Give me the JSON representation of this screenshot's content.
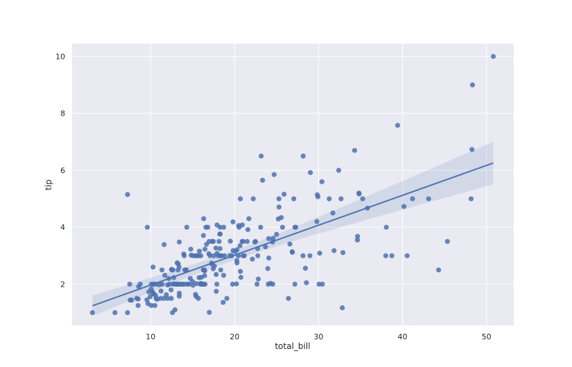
{
  "chart_data": {
    "type": "scatter",
    "subtype": "regplot",
    "title": "",
    "xlabel": "total_bill",
    "ylabel": "tip",
    "xlim": [
      0.65,
      53.25
    ],
    "ylim": [
      0.55,
      10.45
    ],
    "xticks": [
      10,
      20,
      30,
      40,
      50
    ],
    "yticks": [
      2,
      4,
      6,
      8,
      10
    ],
    "grid": true,
    "legend": null,
    "colors": {
      "background": "#eaeaf2",
      "grid": "#ffffff",
      "points": "#4c72b0",
      "line": "#4c72b0",
      "band": "#4c72b0"
    },
    "regression": {
      "x_range": [
        3.07,
        50.81
      ],
      "slope": 0.105,
      "intercept": 0.92,
      "ci_start": [
        0.9,
        1.63
      ],
      "ci_end": [
        5.46,
        6.95
      ]
    },
    "x": [
      16.99,
      10.34,
      21.01,
      23.68,
      24.59,
      25.29,
      8.77,
      26.88,
      15.04,
      14.78,
      10.27,
      35.26,
      15.42,
      18.43,
      14.83,
      21.58,
      10.33,
      16.29,
      16.97,
      20.65,
      17.92,
      20.29,
      15.77,
      39.42,
      19.82,
      17.81,
      13.37,
      12.69,
      21.7,
      19.65,
      9.55,
      18.35,
      15.06,
      20.69,
      17.78,
      24.06,
      16.31,
      16.93,
      18.69,
      31.27,
      16.04,
      17.46,
      13.94,
      9.68,
      30.4,
      18.29,
      22.23,
      32.4,
      28.55,
      18.04,
      12.54,
      10.29,
      34.81,
      9.94,
      25.56,
      19.49,
      38.01,
      26.41,
      11.24,
      48.27,
      20.29,
      13.81,
      11.02,
      18.29,
      17.59,
      20.08,
      16.45,
      3.07,
      20.23,
      15.01,
      12.02,
      17.07,
      26.86,
      25.28,
      14.73,
      10.51,
      17.92,
      27.2,
      22.76,
      17.29,
      19.44,
      16.66,
      10.07,
      32.68,
      15.98,
      34.83,
      13.03,
      18.28,
      24.71,
      21.16,
      28.97,
      22.49,
      5.75,
      16.32,
      22.75,
      40.17,
      27.28,
      12.03,
      21.01,
      12.46,
      11.35,
      15.38,
      44.3,
      22.42,
      20.92,
      15.36,
      20.49,
      25.21,
      18.24,
      14.31,
      14.0,
      7.25,
      38.07,
      23.95,
      25.71,
      17.31,
      29.93,
      10.65,
      12.43,
      24.08,
      11.69,
      13.42,
      14.26,
      15.95,
      12.48,
      29.8,
      8.52,
      14.52,
      11.38,
      22.82,
      19.08,
      20.27,
      11.17,
      12.26,
      18.26,
      8.51,
      10.33,
      14.15,
      16.0,
      13.16,
      17.47,
      34.3,
      41.19,
      27.05,
      16.43,
      8.35,
      18.64,
      11.87,
      9.78,
      7.51,
      14.07,
      13.13,
      17.26,
      24.55,
      19.77,
      29.85,
      48.17,
      25.0,
      13.39,
      16.49,
      21.5,
      12.66,
      16.21,
      13.81,
      17.51,
      24.52,
      20.76,
      31.71,
      10.59,
      10.63,
      50.81,
      15.81,
      7.25,
      31.85,
      16.82,
      32.9,
      17.89,
      14.48,
      9.6,
      34.63,
      34.65,
      23.33,
      45.35,
      23.17,
      40.55,
      20.69,
      20.9,
      30.46,
      18.15,
      23.1,
      15.69,
      19.81,
      28.44,
      15.48,
      16.58,
      7.56,
      10.34,
      43.11,
      13.0,
      13.51,
      18.71,
      12.74,
      13.0,
      16.4,
      20.53,
      16.47,
      26.59,
      38.73,
      24.27,
      12.76,
      30.06,
      25.89,
      48.33,
      13.27,
      28.17,
      12.9,
      28.15,
      11.59,
      7.74,
      30.14,
      12.16,
      13.42,
      8.58,
      15.98,
      13.42,
      16.27,
      10.09,
      20.45,
      13.28,
      22.12,
      24.01,
      15.69,
      11.61,
      10.77,
      15.53,
      10.07,
      12.6,
      32.83,
      35.83,
      29.03,
      27.18,
      22.67,
      17.82,
      18.78
    ],
    "y": [
      1.01,
      1.66,
      3.5,
      3.31,
      3.61,
      4.71,
      2.0,
      3.12,
      1.96,
      3.23,
      1.71,
      5.0,
      1.57,
      3.0,
      3.02,
      3.92,
      1.67,
      3.71,
      3.5,
      3.35,
      4.08,
      2.75,
      2.23,
      7.58,
      3.18,
      2.34,
      2.0,
      2.0,
      4.3,
      3.0,
      1.45,
      2.5,
      3.0,
      2.45,
      3.27,
      3.6,
      2.0,
      3.07,
      2.31,
      5.0,
      2.24,
      2.54,
      3.06,
      1.32,
      5.6,
      3.0,
      5.0,
      6.0,
      2.05,
      3.0,
      2.5,
      2.6,
      5.2,
      1.56,
      4.34,
      3.51,
      3.0,
      1.5,
      1.76,
      6.73,
      3.21,
      2.0,
      1.98,
      3.76,
      2.64,
      3.15,
      2.47,
      1.0,
      2.01,
      2.09,
      1.97,
      3.0,
      3.14,
      5.0,
      2.2,
      1.25,
      3.08,
      4.0,
      3.0,
      2.71,
      3.0,
      3.4,
      1.83,
      5.0,
      2.03,
      5.17,
      2.0,
      4.0,
      5.85,
      3.0,
      3.0,
      3.5,
      1.0,
      4.3,
      3.25,
      4.73,
      4.0,
      1.5,
      3.0,
      1.5,
      2.5,
      3.0,
      2.5,
      3.48,
      4.08,
      1.64,
      4.06,
      4.29,
      3.76,
      4.0,
      3.0,
      1.0,
      4.0,
      2.55,
      4.0,
      3.5,
      5.07,
      1.5,
      1.8,
      2.92,
      2.31,
      1.68,
      2.5,
      2.0,
      2.52,
      4.2,
      1.48,
      2.0,
      2.0,
      2.18,
      1.5,
      2.83,
      1.5,
      2.0,
      3.25,
      1.25,
      2.0,
      2.0,
      2.0,
      2.75,
      3.5,
      6.7,
      5.0,
      5.0,
      2.3,
      1.5,
      1.36,
      1.63,
      1.73,
      2.0,
      2.5,
      2.0,
      2.74,
      2.0,
      2.0,
      5.14,
      5.0,
      3.75,
      2.61,
      2.0,
      3.5,
      2.5,
      2.0,
      2.0,
      3.0,
      3.48,
      2.24,
      4.5,
      1.61,
      2.0,
      10.0,
      3.16,
      5.15,
      3.18,
      4.0,
      3.11,
      2.0,
      2.0,
      4.0,
      3.55,
      3.68,
      5.65,
      3.5,
      6.5,
      3.0,
      5.0,
      3.5,
      2.0,
      3.5,
      4.0,
      1.5,
      4.19,
      2.56,
      2.02,
      4.0,
      1.44,
      2.0,
      5.0,
      2.0,
      2.0,
      4.0,
      2.01,
      2.0,
      2.5,
      4.0,
      3.23,
      3.41,
      3.0,
      2.03,
      2.23,
      2.0,
      5.16,
      9.0,
      2.5,
      6.5,
      1.1,
      3.0,
      1.5,
      1.44,
      3.09,
      2.2,
      3.48,
      1.92,
      3.0,
      1.58,
      2.5,
      2.0,
      3.0,
      2.72,
      2.88,
      2.0,
      3.0,
      3.39,
      1.47,
      3.0,
      1.25,
      1.0,
      1.17,
      4.67,
      5.92,
      2.0,
      2.0,
      1.75,
      3.0
    ]
  }
}
